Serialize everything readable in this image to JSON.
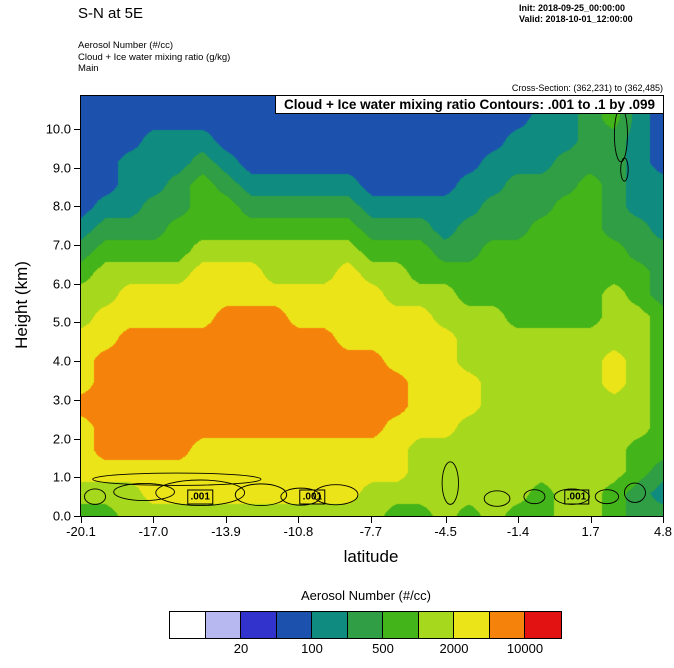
{
  "header": {
    "title": "S-N at 5E",
    "init_label": "Init: 2018-09-25_00:00:00",
    "valid_label": "Valid: 2018-10-01_12:00:00",
    "field_lines": [
      "Aerosol Number   (#/cc)",
      "Cloud + Ice water mixing ratio   (g/kg)",
      "Main"
    ],
    "cross_section": "Cross-Section: (362,231) to (362,485)"
  },
  "chart_data": {
    "type": "heatmap",
    "title": "Cloud + Ice water mixing ratio Contours: .001 to .1 by .099",
    "xlabel": "latitude",
    "ylabel": "Height (km)",
    "x_ticks": [
      "-20.1",
      "-17.0",
      "-13.9",
      "-10.8",
      "-7.7",
      "-4.5",
      "-1.4",
      "1.7",
      "4.8"
    ],
    "y_ticks": [
      "0.0",
      "1.0",
      "2.0",
      "3.0",
      "4.0",
      "5.0",
      "6.0",
      "7.0",
      "8.0",
      "9.0",
      "10.0"
    ],
    "xlim": [
      -20.1,
      4.8
    ],
    "ylim": [
      0,
      10.85
    ],
    "grid_on": false,
    "colorbar": {
      "title": "Aerosol Number  (#/cc)",
      "colors": [
        "#ffffff",
        "#b8b8f0",
        "#3232cd",
        "#1c52ae",
        "#0f8b7f",
        "#2f9e44",
        "#43b419",
        "#a6d81e",
        "#ebe418",
        "#f5820a",
        "#e31212"
      ],
      "tick_labels": [
        "20",
        "100",
        "500",
        "2000",
        "10000"
      ],
      "tick_positions": [
        2,
        4,
        6,
        8,
        10
      ]
    },
    "grid": {
      "value_scale": "colorbar_level_index_0_to_10",
      "rows_from_surface_to_top": true,
      "values": [
        [
          6,
          6,
          7,
          7,
          7,
          7,
          7,
          7,
          7,
          7,
          7,
          7,
          7,
          6,
          6,
          7,
          6,
          7,
          6,
          6,
          7,
          7,
          6,
          5,
          5
        ],
        [
          7,
          7,
          7,
          8,
          8,
          8,
          8,
          8,
          8,
          8,
          8,
          8,
          7,
          7,
          7,
          7,
          7,
          7,
          7,
          6,
          7,
          7,
          6,
          5,
          4
        ],
        [
          8,
          8,
          8,
          8,
          8,
          8,
          8,
          8,
          8,
          8,
          8,
          8,
          8,
          8,
          7,
          7,
          7,
          7,
          7,
          7,
          7,
          7,
          7,
          6,
          5
        ],
        [
          8,
          9,
          9,
          9,
          9,
          8,
          8,
          8,
          8,
          8,
          8,
          8,
          8,
          8,
          7,
          7,
          7,
          7,
          7,
          7,
          7,
          7,
          7,
          6,
          6
        ],
        [
          8,
          9,
          9,
          9,
          9,
          9,
          9,
          9,
          9,
          9,
          9,
          9,
          9,
          8,
          8,
          8,
          7,
          7,
          7,
          7,
          7,
          7,
          7,
          7,
          6
        ],
        [
          9,
          9,
          9,
          9,
          9,
          9,
          9,
          9,
          9,
          9,
          9,
          9,
          9,
          9,
          8,
          8,
          8,
          7,
          7,
          7,
          7,
          7,
          7,
          7,
          6
        ],
        [
          8,
          9,
          9,
          9,
          9,
          9,
          9,
          9,
          9,
          9,
          9,
          9,
          9,
          9,
          8,
          8,
          8,
          7,
          7,
          7,
          7,
          7,
          8,
          7,
          6
        ],
        [
          8,
          9,
          9,
          9,
          9,
          9,
          9,
          9,
          9,
          9,
          9,
          9,
          9,
          8,
          8,
          8,
          7,
          7,
          7,
          7,
          7,
          7,
          8,
          7,
          6
        ],
        [
          8,
          8,
          9,
          9,
          9,
          9,
          9,
          9,
          9,
          9,
          9,
          8,
          8,
          8,
          8,
          8,
          7,
          7,
          7,
          7,
          7,
          7,
          7,
          7,
          6
        ],
        [
          7,
          8,
          8,
          8,
          8,
          8,
          9,
          9,
          9,
          8,
          8,
          8,
          8,
          8,
          8,
          7,
          7,
          7,
          6,
          6,
          6,
          6,
          7,
          7,
          6
        ],
        [
          7,
          7,
          8,
          8,
          8,
          8,
          8,
          8,
          8,
          8,
          8,
          8,
          8,
          7,
          7,
          7,
          6,
          6,
          6,
          6,
          6,
          6,
          7,
          6,
          5
        ],
        [
          6,
          7,
          7,
          7,
          7,
          8,
          8,
          8,
          7,
          7,
          7,
          8,
          7,
          7,
          6,
          6,
          6,
          6,
          6,
          6,
          6,
          6,
          6,
          6,
          5
        ],
        [
          5,
          6,
          6,
          6,
          6,
          7,
          7,
          7,
          7,
          7,
          7,
          7,
          6,
          6,
          6,
          5,
          5,
          6,
          6,
          6,
          6,
          6,
          6,
          5,
          5
        ],
        [
          4,
          5,
          5,
          5,
          6,
          6,
          6,
          6,
          6,
          6,
          6,
          6,
          5,
          5,
          5,
          4,
          5,
          5,
          5,
          6,
          6,
          6,
          5,
          5,
          4
        ],
        [
          3,
          4,
          4,
          5,
          5,
          6,
          6,
          5,
          5,
          5,
          5,
          5,
          4,
          4,
          4,
          4,
          4,
          5,
          5,
          5,
          6,
          6,
          5,
          4,
          4
        ],
        [
          3,
          3,
          4,
          4,
          5,
          6,
          5,
          4,
          4,
          4,
          4,
          4,
          3,
          3,
          3,
          3,
          4,
          4,
          5,
          5,
          5,
          6,
          5,
          4,
          4
        ],
        [
          3,
          3,
          4,
          4,
          4,
          5,
          4,
          3,
          3,
          3,
          3,
          3,
          3,
          3,
          3,
          3,
          3,
          4,
          4,
          4,
          5,
          5,
          5,
          4,
          3
        ],
        [
          3,
          3,
          3,
          4,
          4,
          4,
          3,
          3,
          3,
          3,
          3,
          3,
          3,
          3,
          3,
          3,
          3,
          3,
          4,
          4,
          4,
          5,
          5,
          4,
          3
        ],
        [
          3,
          3,
          3,
          3,
          3,
          3,
          3,
          3,
          3,
          3,
          3,
          3,
          3,
          3,
          3,
          3,
          3,
          3,
          3,
          4,
          4,
          5,
          6,
          4,
          3
        ],
        [
          3,
          3,
          3,
          3,
          3,
          3,
          3,
          3,
          3,
          3,
          3,
          3,
          3,
          3,
          3,
          3,
          3,
          3,
          3,
          3,
          4,
          5,
          6,
          4,
          3
        ]
      ]
    },
    "cloud_contours": [
      {
        "x": -19.5,
        "y": 0.5,
        "rx": 0.45,
        "ry": 0.2
      },
      {
        "x": -17.4,
        "y": 0.62,
        "rx": 1.3,
        "ry": 0.22
      },
      {
        "x": -15.0,
        "y": 0.6,
        "rx": 1.9,
        "ry": 0.33
      },
      {
        "x": -16.0,
        "y": 0.95,
        "rx": 3.6,
        "ry": 0.16
      },
      {
        "x": -12.4,
        "y": 0.55,
        "rx": 1.1,
        "ry": 0.28
      },
      {
        "x": -10.7,
        "y": 0.5,
        "rx": 0.85,
        "ry": 0.22
      },
      {
        "x": -9.2,
        "y": 0.55,
        "rx": 0.95,
        "ry": 0.26
      },
      {
        "x": -4.3,
        "y": 0.85,
        "rx": 0.35,
        "ry": 0.55
      },
      {
        "x": -2.3,
        "y": 0.45,
        "rx": 0.55,
        "ry": 0.2
      },
      {
        "x": -0.7,
        "y": 0.5,
        "rx": 0.45,
        "ry": 0.18
      },
      {
        "x": 0.9,
        "y": 0.5,
        "rx": 0.75,
        "ry": 0.2
      },
      {
        "x": 2.4,
        "y": 0.5,
        "rx": 0.5,
        "ry": 0.18
      },
      {
        "x": 3.6,
        "y": 0.6,
        "rx": 0.45,
        "ry": 0.25
      },
      {
        "x": 3.0,
        "y": 9.85,
        "rx": 0.28,
        "ry": 0.7
      },
      {
        "x": 3.15,
        "y": 8.95,
        "rx": 0.16,
        "ry": 0.3
      }
    ],
    "contour_labels": [
      {
        "text": ".001",
        "x": -15.0,
        "y": 0.5
      },
      {
        "text": ".001",
        "x": -10.2,
        "y": 0.5
      },
      {
        "text": ".001",
        "x": 1.1,
        "y": 0.5
      }
    ]
  }
}
